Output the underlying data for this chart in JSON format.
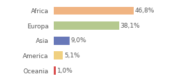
{
  "categories": [
    "Africa",
    "Europa",
    "Asia",
    "America",
    "Oceania"
  ],
  "values": [
    46.8,
    38.1,
    9.0,
    5.1,
    1.0
  ],
  "labels": [
    "46,8%",
    "38,1%",
    "9,0%",
    "5,1%",
    "1,0%"
  ],
  "bar_colors": [
    "#f0b482",
    "#b5c98e",
    "#6878b8",
    "#f0d080",
    "#d94f4f"
  ],
  "background_color": "#ffffff",
  "xlim": [
    0,
    68
  ],
  "label_fontsize": 6.5,
  "category_fontsize": 6.5,
  "bar_height": 0.55
}
